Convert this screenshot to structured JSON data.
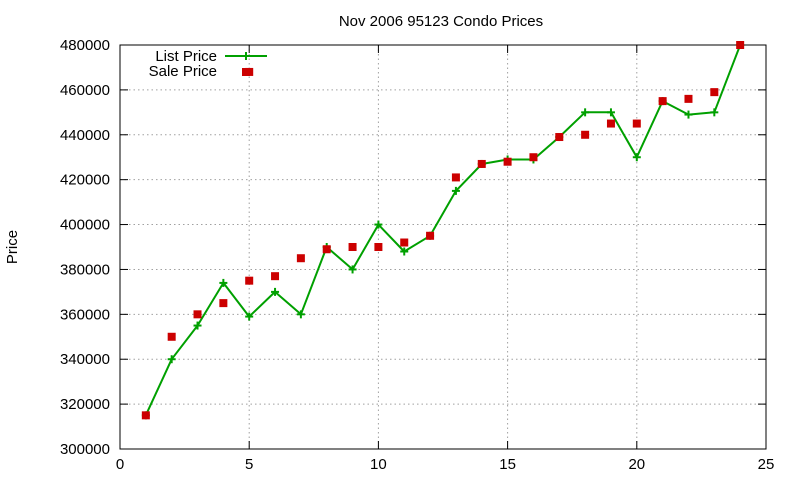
{
  "chart_data": {
    "type": "line",
    "title": "Nov 2006 95123 Condo Prices",
    "xlabel": "",
    "ylabel": "Price",
    "xlim": [
      0,
      25
    ],
    "ylim": [
      300000,
      480000
    ],
    "xticks": [
      0,
      5,
      10,
      15,
      20,
      25
    ],
    "yticks": [
      300000,
      320000,
      340000,
      360000,
      380000,
      400000,
      420000,
      440000,
      460000,
      480000
    ],
    "grid": true,
    "legend_position": "top-left",
    "series": [
      {
        "name": "List Price",
        "style": "line with plus markers",
        "color": "#00a000",
        "x": [
          1,
          2,
          3,
          4,
          5,
          6,
          7,
          8,
          9,
          10,
          11,
          12,
          13,
          14,
          15,
          16,
          17,
          18,
          19,
          20,
          21,
          22,
          23,
          24
        ],
        "y": [
          315000,
          340000,
          355000,
          374000,
          359000,
          370000,
          360000,
          390000,
          380000,
          400000,
          388000,
          395000,
          415000,
          427000,
          429000,
          429000,
          439000,
          450000,
          450000,
          430000,
          455000,
          449000,
          450000,
          480000
        ]
      },
      {
        "name": "Sale Price",
        "style": "square markers",
        "color": "#cc0000",
        "x": [
          1,
          2,
          3,
          4,
          5,
          5,
          6,
          7,
          8,
          9,
          10,
          11,
          12,
          13,
          14,
          15,
          16,
          17,
          18,
          19,
          20,
          21,
          22,
          23,
          24
        ],
        "y": [
          315000,
          350000,
          360000,
          365000,
          375000,
          468000,
          377000,
          385000,
          389000,
          390000,
          390000,
          392000,
          395000,
          421000,
          427000,
          428000,
          430000,
          439000,
          440000,
          445000,
          445000,
          455000,
          456000,
          459000,
          480000
        ]
      }
    ]
  }
}
